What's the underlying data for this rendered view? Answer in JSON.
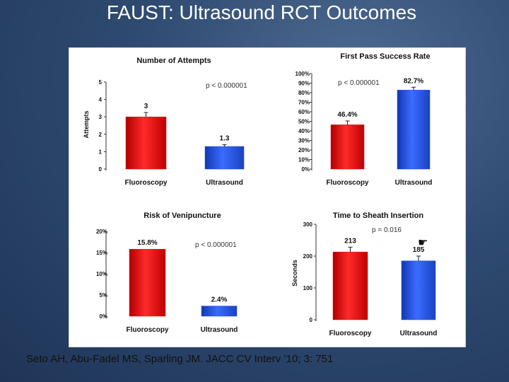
{
  "slide": {
    "title": "FAUST: Ultrasound RCT Outcomes",
    "citation": "Seto AH, Abu-Fadel MS, Sparling JM.  JACC CV Interv ’10; 3: 751"
  },
  "colors": {
    "fluoroscopy": "#e01414",
    "ultrasound": "#1f4fe0",
    "background": "#2f4a70"
  },
  "chart_data": [
    {
      "type": "bar",
      "title": "Number of Attempts",
      "ylabel": "Attempts",
      "categories": [
        "Fluoroscopy",
        "Ultrasound"
      ],
      "values": [
        3,
        1.3
      ],
      "value_labels": [
        "3",
        "1.3"
      ],
      "errors": [
        0.25,
        0.1
      ],
      "ylim": [
        0,
        5
      ],
      "yticks": [
        0,
        1,
        2,
        3,
        4,
        5
      ],
      "ytick_labels": [
        "0",
        "1",
        "2",
        "3",
        "4",
        "5"
      ],
      "annotation": "p < 0.000001"
    },
    {
      "type": "bar",
      "title": "First Pass Success Rate",
      "ylabel": "",
      "categories": [
        "Fluoroscopy",
        "Ultrasound"
      ],
      "values": [
        46.4,
        82.7
      ],
      "value_labels": [
        "46.4%",
        "82.7%"
      ],
      "errors": [
        4,
        3
      ],
      "ylim": [
        0,
        100
      ],
      "yticks": [
        0,
        10,
        20,
        30,
        40,
        50,
        60,
        70,
        80,
        90,
        100
      ],
      "ytick_labels": [
        "0%",
        "10%",
        "20%",
        "30%",
        "40%",
        "50%",
        "60%",
        "70%",
        "80%",
        "90%",
        "100%"
      ],
      "annotation": "p < 0.000001"
    },
    {
      "type": "bar",
      "title": "Risk of Venipuncture",
      "ylabel": "",
      "categories": [
        "Fluoroscopy",
        "Ultrasound"
      ],
      "values": [
        15.8,
        2.4
      ],
      "value_labels": [
        "15.8%",
        "2.4%"
      ],
      "errors": [
        0,
        0
      ],
      "ylim": [
        0,
        20
      ],
      "yticks": [
        0,
        5,
        10,
        15,
        20
      ],
      "ytick_labels": [
        "0%",
        "5%",
        "10%",
        "15%",
        "20%"
      ],
      "annotation": "p < 0.000001"
    },
    {
      "type": "bar",
      "title": "Time to Sheath Insertion",
      "ylabel": "Seconds",
      "categories": [
        "Fluoroscopy",
        "Ultrasound"
      ],
      "values": [
        213,
        185
      ],
      "value_labels": [
        "213",
        "185"
      ],
      "errors": [
        15,
        15
      ],
      "ylim": [
        0,
        300
      ],
      "yticks": [
        0,
        100,
        200,
        300
      ],
      "ytick_labels": [
        "0",
        "100",
        "200",
        "300"
      ],
      "annotation": "p = 0.016"
    }
  ]
}
